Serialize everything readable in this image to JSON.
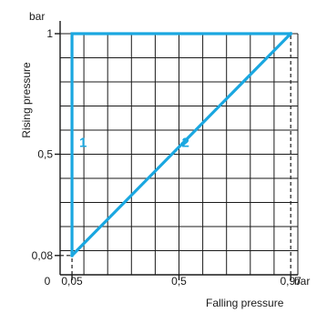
{
  "chart_data": {
    "type": "line",
    "x_unit": "bar",
    "y_unit": "bar",
    "xlabel": "Falling pressure",
    "ylabel": "Rising pressure",
    "xlim": [
      0,
      1
    ],
    "ylim": [
      0,
      1
    ],
    "x_origin_label": "0",
    "x_ticks": [
      {
        "value": 0.05,
        "label": "0,05"
      },
      {
        "value": 0.5,
        "label": "0,5"
      },
      {
        "value": 0.97,
        "label": "0,97"
      }
    ],
    "y_ticks": [
      {
        "value": 0.08,
        "label": "0,08"
      },
      {
        "value": 0.5,
        "label": "0,5"
      },
      {
        "value": 1,
        "label": "1"
      }
    ],
    "grid": true,
    "grid_step": 0.1,
    "accent_color": "#1aa7e0",
    "series": [
      {
        "name": "1",
        "points": [
          [
            0.05,
            0.08
          ],
          [
            0.05,
            1
          ],
          [
            0.97,
            1
          ]
        ]
      },
      {
        "name": "2",
        "points": [
          [
            0.05,
            0.08
          ],
          [
            0.97,
            1
          ]
        ]
      }
    ],
    "series_label_positions": [
      [
        0.05,
        0.55
      ],
      [
        0.5,
        0.55
      ]
    ],
    "dashed_guides": [
      {
        "from": [
          0.05,
          0
        ],
        "to": [
          0.05,
          0.08
        ]
      },
      {
        "from": [
          0,
          0.08
        ],
        "to": [
          0.05,
          0.08
        ]
      },
      {
        "from": [
          0.97,
          0
        ],
        "to": [
          0.97,
          1
        ]
      }
    ]
  }
}
